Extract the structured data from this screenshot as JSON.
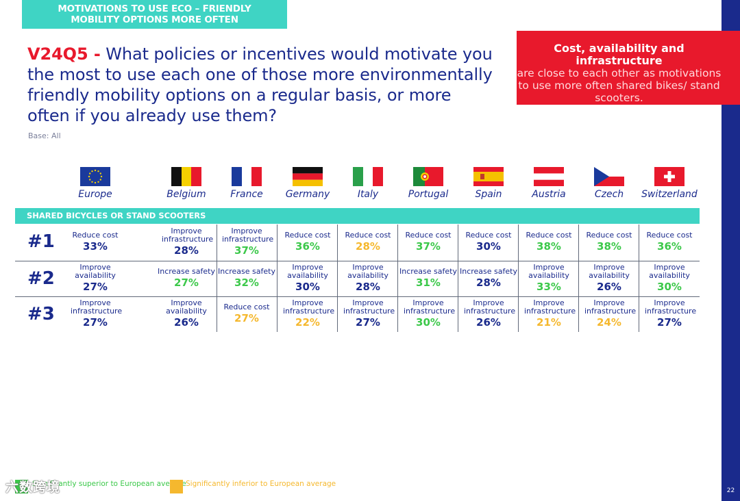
{
  "banner": {
    "line1": "MOTIVATIONS TO USE ECO – FRIENDLY",
    "line2": "MOBILITY OPTIONS MORE OFTEN"
  },
  "question": {
    "code": "V24Q5 -",
    "text": " What policies or incentives would motivate you the most to use each one of those more environmentally friendly mobility options on a regular basis, or more often if you already use them?"
  },
  "base": "Base: All",
  "callout": {
    "bold": "Cost, availability and infrastructure",
    "rest": "are close to each other as motivations to use more often shared bikes/ stand scooters."
  },
  "countries": [
    "Europe",
    "Belgium",
    "France",
    "Germany",
    "Italy",
    "Portugal",
    "Spain",
    "Austria",
    "Czech",
    "Switzerland"
  ],
  "section_title": "SHARED BICYCLES OR STAND SCOOTERS",
  "ranks": [
    "#1",
    "#2",
    "#3"
  ],
  "rows": [
    [
      {
        "label": "Reduce cost",
        "value": "33%"
      },
      {
        "label": "Improve infrastructure",
        "value": "28%"
      },
      {
        "label": "Improve infrastructure",
        "value": "37%"
      },
      {
        "label": "Reduce cost",
        "value": "36%"
      },
      {
        "label": "Reduce cost",
        "value": "28%"
      },
      {
        "label": "Reduce cost",
        "value": "37%"
      },
      {
        "label": "Reduce cost",
        "value": "30%"
      },
      {
        "label": "Reduce cost",
        "value": "38%"
      },
      {
        "label": "Reduce cost",
        "value": "38%"
      },
      {
        "label": "Reduce cost",
        "value": "36%"
      }
    ],
    [
      {
        "label": "Improve availability",
        "value": "27%"
      },
      {
        "label": "Increase safety",
        "value": "27%"
      },
      {
        "label": "Increase safety",
        "value": "32%"
      },
      {
        "label": "Improve availability",
        "value": "30%"
      },
      {
        "label": "Improve availability",
        "value": "28%"
      },
      {
        "label": "Increase safety",
        "value": "31%"
      },
      {
        "label": "Increase safety",
        "value": "28%"
      },
      {
        "label": "Improve availability",
        "value": "33%"
      },
      {
        "label": "Improve availability",
        "value": "26%"
      },
      {
        "label": "Improve availability",
        "value": "30%"
      }
    ],
    [
      {
        "label": "Improve infrastructure",
        "value": "27%"
      },
      {
        "label": "Improve availability",
        "value": "26%"
      },
      {
        "label": "Reduce cost",
        "value": "27%"
      },
      {
        "label": "Improve infrastructure",
        "value": "22%"
      },
      {
        "label": "Improve infrastructure",
        "value": "27%"
      },
      {
        "label": "Improve infrastructure",
        "value": "30%"
      },
      {
        "label": "Improve infrastructure",
        "value": "26%"
      },
      {
        "label": "Improve infrastructure",
        "value": "21%"
      },
      {
        "label": "Improve infrastructure",
        "value": "24%"
      },
      {
        "label": "Improve infrastructure",
        "value": "27%"
      }
    ]
  ],
  "legend": {
    "superior": "Significantly superior to European average",
    "inferior": "Significantly inferior to European average"
  },
  "colors": {
    "navy": "#1a2a8c",
    "superior": "#3cc84a",
    "inferior": "#f5b82e",
    "neutral": "#1a2a8c"
  },
  "page_number": "22",
  "watermark": "六数跨境"
}
